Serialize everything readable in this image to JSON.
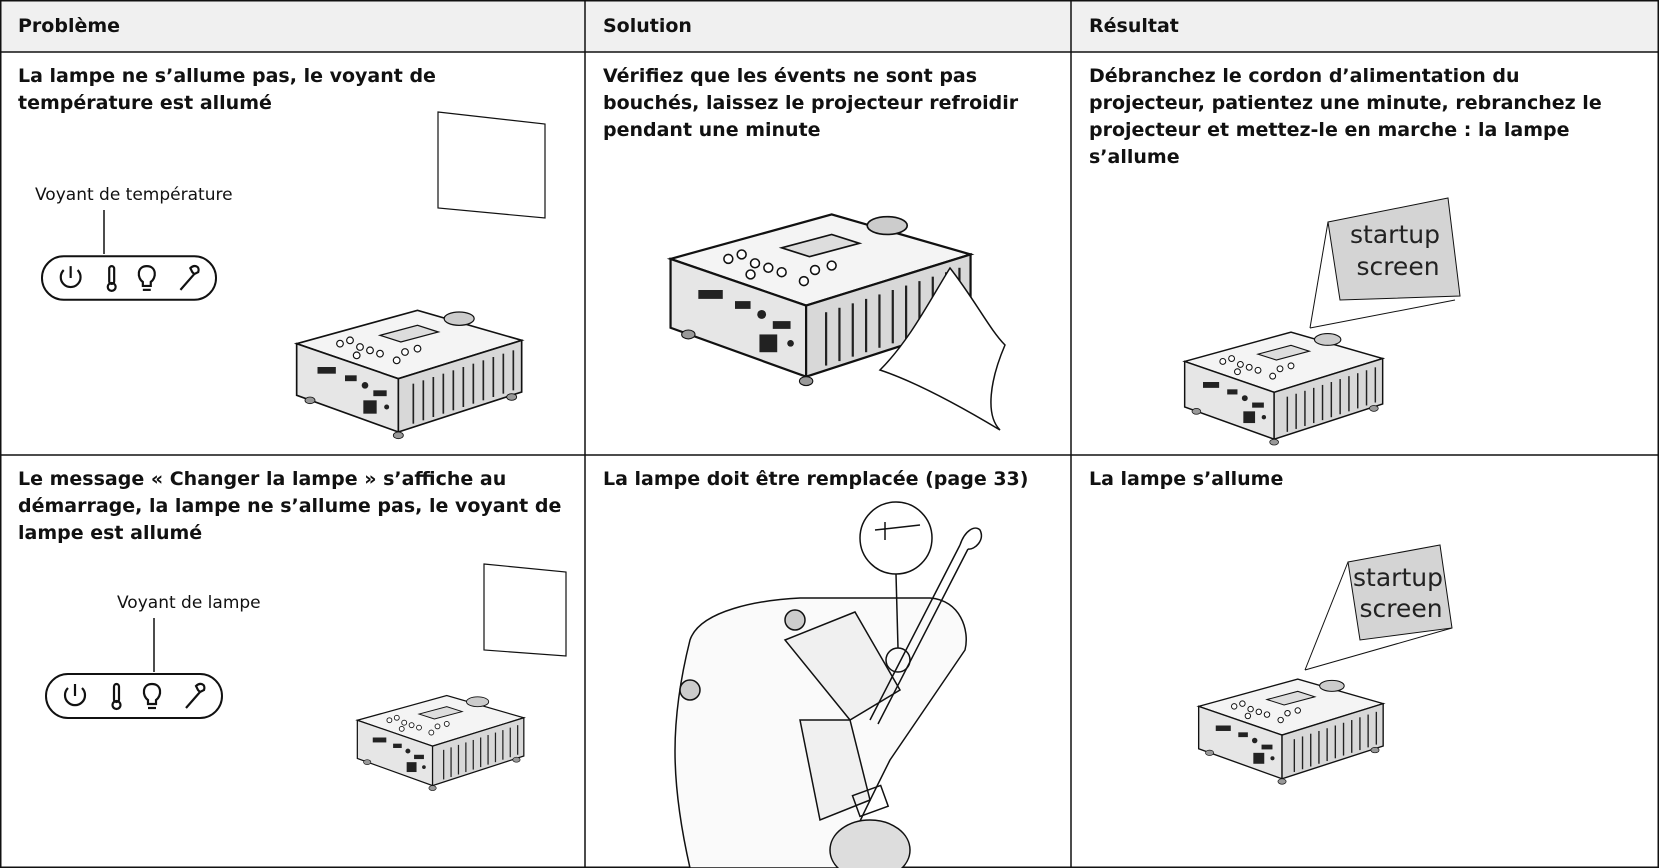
{
  "table": {
    "header": [
      "Problème",
      "Solution",
      "Résultat"
    ],
    "rows": [
      [
        {
          "text": "La lampe ne s’allume pas, le voyant de température est allumé",
          "caption": "Voyant de température"
        },
        {
          "text": "Vérifiez que les évents ne sont pas bouchés, laissez le projecteur refroidir pendant une minute"
        },
        {
          "text": "Débranchez le cordon d’alimentation du projecteur, patientez une minute, rebranchez le projecteur et mettez-le en marche : la lampe s’allume",
          "screen": [
            "startup",
            "screen"
          ]
        }
      ],
      [
        {
          "text": "Le message « Changer la lampe » s’affiche au démarrage, la lampe ne s’allume pas, le voyant de lampe est allumé",
          "caption": "Voyant de lampe"
        },
        {
          "text": "La lampe doit être remplacée (page 33)"
        },
        {
          "text": "La lampe s’allume",
          "screen": [
            "startup",
            "screen"
          ]
        }
      ]
    ]
  }
}
